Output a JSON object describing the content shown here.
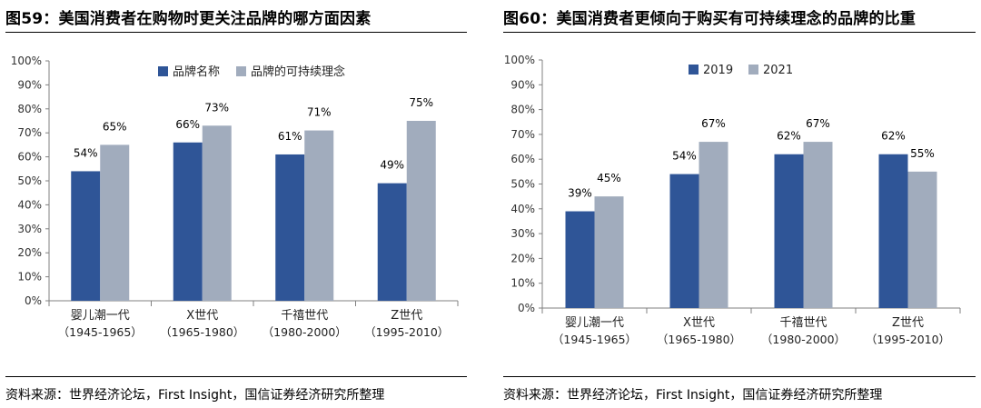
{
  "chart_data": [
    {
      "type": "bar",
      "title": "图59：美国消费者在购物时更关注品牌的哪方面因素",
      "categories": [
        "婴儿潮一代",
        "X世代",
        "千禧世代",
        "Z世代"
      ],
      "category_years": [
        "（1945-1965）",
        "（1965-1980）",
        "（1980-2000）",
        "（1995-2010）"
      ],
      "series": [
        {
          "name": "品牌名称",
          "values": [
            54,
            66,
            61,
            49
          ],
          "color": "#2F5597"
        },
        {
          "name": "品牌的可持续理念",
          "values": [
            65,
            73,
            71,
            75
          ],
          "color": "#A1ACBD"
        }
      ],
      "value_labels": [
        [
          "54%",
          "66%",
          "61%",
          "49%"
        ],
        [
          "65%",
          "73%",
          "71%",
          "75%"
        ]
      ],
      "ylim": [
        0,
        100
      ],
      "yticks": [
        "0%",
        "10%",
        "20%",
        "30%",
        "40%",
        "50%",
        "60%",
        "70%",
        "80%",
        "90%",
        "100%"
      ],
      "legend": "top-center",
      "grid": false,
      "source": "资料来源：世界经济论坛，First Insight，国信证券经济研究所整理"
    },
    {
      "type": "bar",
      "title": "图60：美国消费者更倾向于购买有可持续理念的品牌的比重",
      "categories": [
        "婴儿潮一代",
        "X世代",
        "千禧世代",
        "Z世代"
      ],
      "category_years": [
        "（1945-1965）",
        "（1965-1980）",
        "（1980-2000）",
        "（1995-2010）"
      ],
      "series": [
        {
          "name": "2019",
          "values": [
            39,
            54,
            62,
            62
          ],
          "color": "#2F5597"
        },
        {
          "name": "2021",
          "values": [
            45,
            67,
            67,
            55
          ],
          "color": "#A1ACBD"
        }
      ],
      "value_labels": [
        [
          "39%",
          "54%",
          "62%",
          "62%"
        ],
        [
          "45%",
          "67%",
          "67%",
          "55%"
        ]
      ],
      "ylim": [
        0,
        100
      ],
      "yticks": [
        "0%",
        "10%",
        "20%",
        "30%",
        "40%",
        "50%",
        "60%",
        "70%",
        "80%",
        "90%",
        "100%"
      ],
      "legend": "top-center",
      "grid": false,
      "source": "资料来源：世界经济论坛，First Insight，国信证券经济研究所整理"
    }
  ]
}
